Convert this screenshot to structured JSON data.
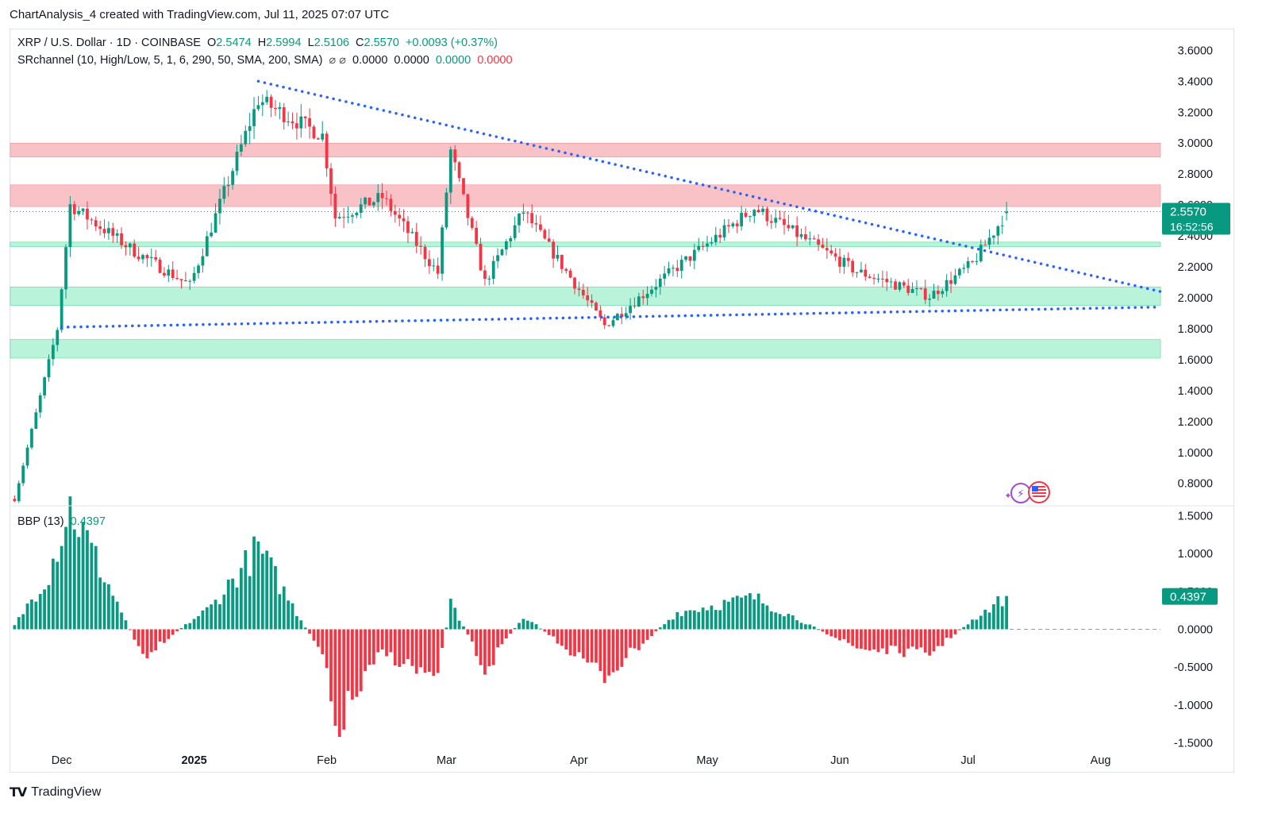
{
  "header": {
    "attribution": "ChartAnalysis_4 created with TradingView.com, Jul 11, 2025 07:07 UTC"
  },
  "legend": {
    "symbol": "XRP / U.S. Dollar · 1D · COINBASE",
    "open_label": "O",
    "open": "2.5474",
    "high_label": "H",
    "high": "2.5994",
    "low_label": "L",
    "low": "2.5106",
    "close_label": "C",
    "close": "2.5570",
    "change": "+0.0093 (+0.37%)",
    "indicator": "SRchannel (10, High/Low, 5, 1, 6, 290, 50, SMA, 200, SMA)",
    "indicator_icons": "⌀ ⌀",
    "ind_v1": "0.0000",
    "ind_v2": "0.0000",
    "ind_v3": "0.0000",
    "ind_v4": "0.0000"
  },
  "bbp_legend": {
    "name": "BBP (13)",
    "value": "0.4397"
  },
  "price_tag": {
    "price": "2.5570",
    "countdown": "16:52:56"
  },
  "bbp_tag": "0.4397",
  "footer": {
    "brand": "TradingView"
  },
  "colors": {
    "up": "#089981",
    "down": "#f23645",
    "trend": "#2962ff",
    "resistance_zone": "#f9c2c6",
    "support_zone": "#b9f3d9"
  },
  "chart_data": [
    {
      "type": "candlestick",
      "title": "XRP / U.S. Dollar · 1D · COINBASE",
      "x_tick_labels": [
        "Dec",
        "2025",
        "Feb",
        "Mar",
        "Apr",
        "May",
        "Jun",
        "Jul",
        "Aug"
      ],
      "x_range": [
        "2024-11-19",
        "2025-08-15"
      ],
      "y_ticks": [
        "3.6000",
        "3.4000",
        "3.2000",
        "3.0000",
        "2.8000",
        "2.6000",
        "2.4000",
        "2.2000",
        "2.0000",
        "1.8000",
        "1.6000",
        "1.4000",
        "1.2000",
        "1.0000",
        "0.8000"
      ],
      "ylim": [
        0.66,
        3.72
      ],
      "grid": false,
      "last_close": 2.557,
      "zones": {
        "resistance": [
          [
            2.91,
            3.0
          ],
          [
            2.59,
            2.73
          ]
        ],
        "support": [
          [
            2.33,
            2.36
          ],
          [
            1.95,
            2.07
          ],
          [
            1.61,
            1.73
          ]
        ]
      },
      "trendlines": [
        {
          "name": "descending resistance",
          "from": [
            "2025-01-16",
            3.4
          ],
          "to": [
            "2025-08-15",
            2.04
          ]
        },
        {
          "name": "ascending support",
          "from": [
            "2024-12-01",
            1.81
          ],
          "to": [
            "2025-08-15",
            1.94
          ]
        }
      ],
      "key_points": [
        {
          "x": "2024-11-20",
          "close": 0.7
        },
        {
          "x": "2024-11-30",
          "close": 1.8
        },
        {
          "x": "2024-12-03",
          "close": 2.6
        },
        {
          "x": "2024-12-18",
          "close": 2.3
        },
        {
          "x": "2024-12-31",
          "close": 2.08
        },
        {
          "x": "2025-01-16",
          "close": 3.28
        },
        {
          "x": "2025-01-31",
          "close": 3.05
        },
        {
          "x": "2025-02-03",
          "close": 2.52
        },
        {
          "x": "2025-02-14",
          "close": 2.65
        },
        {
          "x": "2025-02-27",
          "close": 2.16
        },
        {
          "x": "2025-03-02",
          "close": 2.95
        },
        {
          "x": "2025-03-10",
          "close": 2.1
        },
        {
          "x": "2025-03-19",
          "close": 2.56
        },
        {
          "x": "2025-04-07",
          "close": 1.82
        },
        {
          "x": "2025-04-24",
          "close": 2.2
        },
        {
          "x": "2025-05-12",
          "close": 2.58
        },
        {
          "x": "2025-06-05",
          "close": 2.17
        },
        {
          "x": "2025-06-22",
          "close": 2.01
        },
        {
          "x": "2025-07-02",
          "close": 2.22
        },
        {
          "x": "2025-07-10",
          "close": 2.55
        }
      ]
    },
    {
      "type": "bar",
      "title": "BBP (13)",
      "y_ticks": [
        "1.5000",
        "1.0000",
        "0.5000",
        "0.0000",
        "-0.5000",
        "-1.0000",
        "-1.5000"
      ],
      "ylim": [
        -1.6,
        1.6
      ],
      "last_value": 0.4397,
      "key_points": [
        {
          "x": "2024-11-20",
          "value": 0.05
        },
        {
          "x": "2024-11-28",
          "value": 0.75
        },
        {
          "x": "2024-12-03",
          "value": 1.63
        },
        {
          "x": "2024-12-20",
          "value": -0.35
        },
        {
          "x": "2025-01-05",
          "value": 0.3
        },
        {
          "x": "2025-01-16",
          "value": 1.07
        },
        {
          "x": "2025-01-31",
          "value": -0.35
        },
        {
          "x": "2025-02-03",
          "value": -1.33
        },
        {
          "x": "2025-02-14",
          "value": -0.3
        },
        {
          "x": "2025-02-27",
          "value": -0.68
        },
        {
          "x": "2025-03-02",
          "value": 0.38
        },
        {
          "x": "2025-03-10",
          "value": -0.55
        },
        {
          "x": "2025-03-19",
          "value": 0.18
        },
        {
          "x": "2025-04-07",
          "value": -0.62
        },
        {
          "x": "2025-04-24",
          "value": 0.22
        },
        {
          "x": "2025-05-12",
          "value": 0.42
        },
        {
          "x": "2025-06-05",
          "value": -0.25
        },
        {
          "x": "2025-06-22",
          "value": -0.32
        },
        {
          "x": "2025-07-02",
          "value": 0.12
        },
        {
          "x": "2025-07-10",
          "value": 0.44
        }
      ]
    }
  ]
}
